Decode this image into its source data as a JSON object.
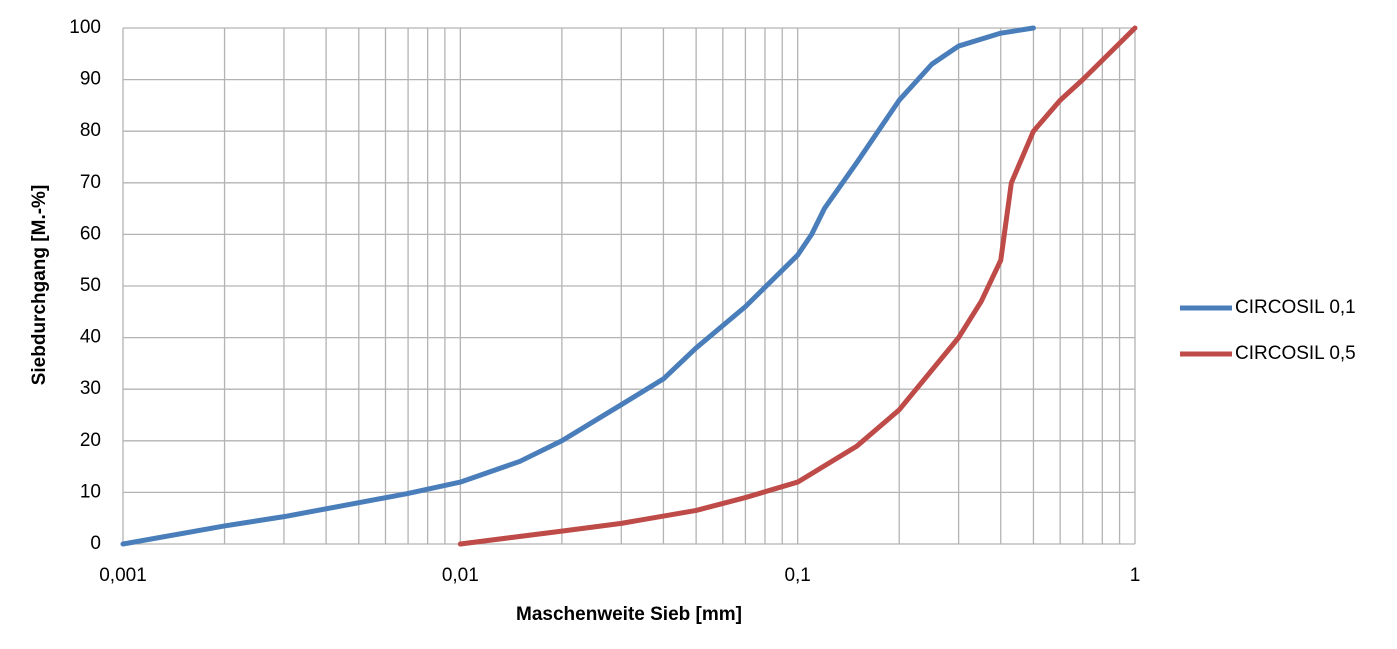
{
  "chart_data": {
    "type": "line",
    "x_label": "Maschenweite Sieb [mm]",
    "y_label": "Siebdurchgang [M.-%]",
    "log_x": true,
    "grid": true,
    "legend": "right",
    "xlim": [
      0.001,
      1
    ],
    "xticks": [
      {
        "value": 0.001,
        "label": "0,001"
      },
      {
        "value": 0.01,
        "label": "0,01"
      },
      {
        "value": 0.1,
        "label": "0,1"
      },
      1
    ],
    "ylim": [
      0,
      100
    ],
    "yticks": [
      0,
      10,
      20,
      30,
      40,
      50,
      60,
      70,
      80,
      90,
      100
    ],
    "series": [
      {
        "name": "CIRCOSIL 0,1",
        "color": "#4a7ebb",
        "x": [
          0.001,
          0.002,
          0.003,
          0.005,
          0.007,
          0.01,
          0.015,
          0.02,
          0.03,
          0.04,
          0.05,
          0.07,
          0.1,
          0.11,
          0.12,
          0.15,
          0.2,
          0.25,
          0.3,
          0.4,
          0.5
        ],
        "values": [
          0,
          3.5,
          5.3,
          8,
          9.8,
          12,
          16,
          20,
          27,
          32,
          38,
          46,
          56,
          60,
          65,
          74,
          86,
          93,
          96.5,
          99,
          100
        ]
      },
      {
        "name": "CIRCOSIL 0,5",
        "color": "#be4b48",
        "x": [
          0.01,
          0.02,
          0.03,
          0.05,
          0.07,
          0.1,
          0.15,
          0.2,
          0.3,
          0.35,
          0.4,
          0.43,
          0.5,
          0.6,
          0.7,
          1
        ],
        "values": [
          0,
          2.5,
          4,
          6.5,
          9,
          12,
          19,
          26,
          40,
          47,
          55,
          70,
          80,
          86,
          90,
          100
        ]
      }
    ]
  }
}
